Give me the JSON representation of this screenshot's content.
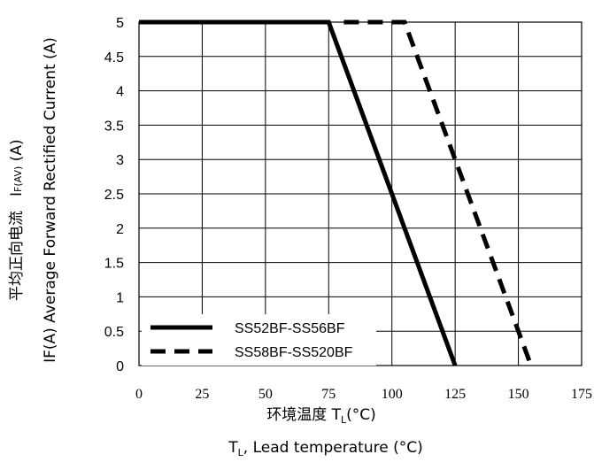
{
  "chart_data": {
    "type": "line",
    "xlabel_cn": "环境温度 T",
    "xlabel_cn_sub": "L",
    "xlabel_cn_unit": "(°C)",
    "xlabel_en_pre": "T",
    "xlabel_en_sub": "L",
    "xlabel_en_post": ", Lead temperature (°C)",
    "ylabel_cn": "平均正向电流",
    "ylabel_sym": "I",
    "ylabel_sym_sub": "F(AV)",
    "ylabel_sym_unit": " (A)",
    "ylabel_en": "IF(A)  Average Forward Rectified Current (A)",
    "xlim": [
      0,
      175
    ],
    "ylim": [
      0,
      5
    ],
    "x_ticks": [
      "0",
      "25",
      "50",
      "75",
      "100",
      "125",
      "150",
      "175"
    ],
    "y_ticks": [
      "0",
      "0.5",
      "1",
      "1.5",
      "2",
      "2.5",
      "3",
      "3.5",
      "4",
      "4.5",
      "5"
    ],
    "grid": true,
    "legend_position": "bottom-left",
    "series": [
      {
        "name": "SS52BF-SS56BF",
        "style": "solid",
        "color": "#000000",
        "x": [
          0,
          75,
          125
        ],
        "y": [
          5,
          5,
          0
        ]
      },
      {
        "name": "SS58BF-SS520BF",
        "style": "dashed",
        "color": "#000000",
        "x": [
          81,
          105,
          155
        ],
        "y": [
          5,
          5,
          0
        ]
      }
    ]
  }
}
